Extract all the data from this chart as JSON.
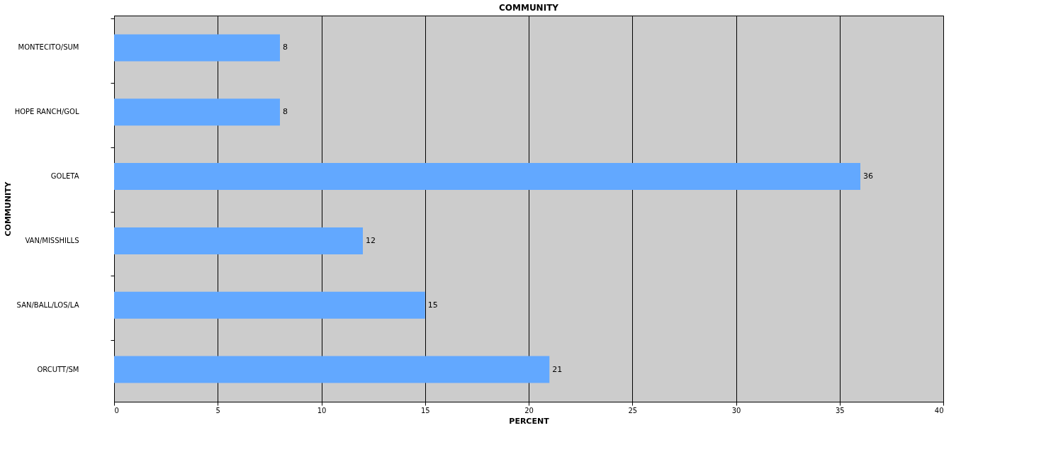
{
  "chart_data": {
    "type": "bar",
    "orientation": "horizontal",
    "title": "COMMUNITY",
    "xlabel": "PERCENT",
    "ylabel": "COMMUNITY",
    "categories": [
      "MONTECITO/SUM",
      "HOPE RANCH/GOL",
      "GOLETA",
      "VAN/MISSHILLS",
      "SAN/BALL/LOS/LA",
      "ORCUTT/SM"
    ],
    "values": [
      8,
      8,
      36,
      12,
      15,
      21
    ],
    "color": "#62a8ff",
    "xlim": [
      0,
      40
    ],
    "xticks": [
      0,
      5,
      10,
      15,
      20,
      25,
      30,
      35,
      40
    ],
    "grid": "x",
    "data_labels": true
  }
}
